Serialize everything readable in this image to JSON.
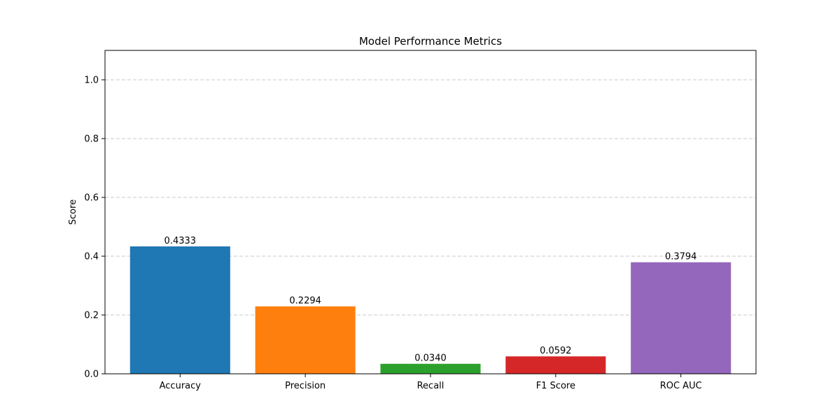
{
  "chart_data": {
    "type": "bar",
    "title": "Model Performance Metrics",
    "xlabel": "",
    "ylabel": "Score",
    "categories": [
      "Accuracy",
      "Precision",
      "Recall",
      "F1 Score",
      "ROC AUC"
    ],
    "values": [
      0.4333,
      0.2294,
      0.034,
      0.0592,
      0.3794
    ],
    "value_labels": [
      "0.4333",
      "0.2294",
      "0.0340",
      "0.0592",
      "0.3794"
    ],
    "colors": [
      "#1f77b4",
      "#ff7f0e",
      "#2ca02c",
      "#d62728",
      "#9467bd"
    ],
    "ylim": [
      0,
      1.1
    ],
    "yticks": [
      0.0,
      0.2,
      0.4,
      0.6,
      0.8,
      1.0
    ],
    "ytick_labels": [
      "0.0",
      "0.2",
      "0.4",
      "0.6",
      "0.8",
      "1.0"
    ],
    "grid": {
      "y": true,
      "x": false,
      "style": "dashed"
    },
    "legend": "none"
  }
}
